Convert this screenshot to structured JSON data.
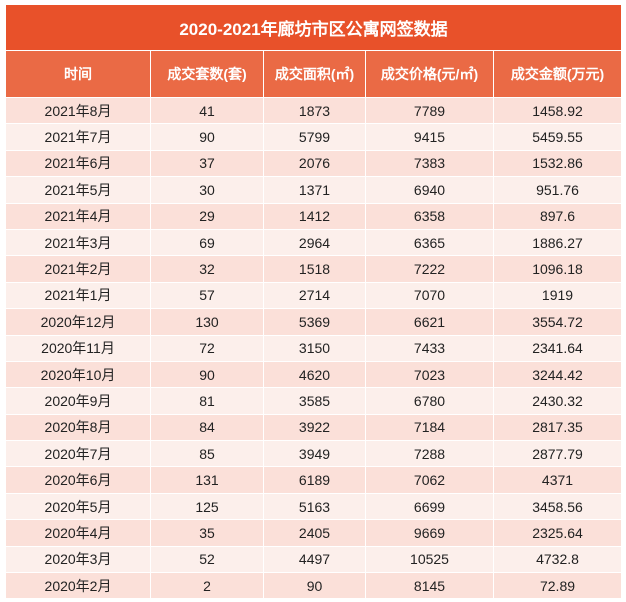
{
  "table": {
    "title": "2020-2021年廊坊市区公寓网签数据",
    "columns": [
      "时间",
      "成交套数(套)",
      "成交面积(㎡)",
      "成交价格(元/㎡)",
      "成交金额(万元)"
    ],
    "rows": [
      [
        "2021年8月",
        "41",
        "1873",
        "7789",
        "1458.92"
      ],
      [
        "2021年7月",
        "90",
        "5799",
        "9415",
        "5459.55"
      ],
      [
        "2021年6月",
        "37",
        "2076",
        "7383",
        "1532.86"
      ],
      [
        "2021年5月",
        "30",
        "1371",
        "6940",
        "951.76"
      ],
      [
        "2021年4月",
        "29",
        "1412",
        "6358",
        "897.6"
      ],
      [
        "2021年3月",
        "69",
        "2964",
        "6365",
        "1886.27"
      ],
      [
        "2021年2月",
        "32",
        "1518",
        "7222",
        "1096.18"
      ],
      [
        "2021年1月",
        "57",
        "2714",
        "7070",
        "1919"
      ],
      [
        "2020年12月",
        "130",
        "5369",
        "6621",
        "3554.72"
      ],
      [
        "2020年11月",
        "72",
        "3150",
        "7433",
        "2341.64"
      ],
      [
        "2020年10月",
        "90",
        "4620",
        "7023",
        "3244.42"
      ],
      [
        "2020年9月",
        "81",
        "3585",
        "6780",
        "2430.32"
      ],
      [
        "2020年8月",
        "84",
        "3922",
        "7184",
        "2817.35"
      ],
      [
        "2020年7月",
        "85",
        "3949",
        "7288",
        "2877.79"
      ],
      [
        "2020年6月",
        "131",
        "6189",
        "7062",
        "4371"
      ],
      [
        "2020年5月",
        "125",
        "5163",
        "6699",
        "3458.56"
      ],
      [
        "2020年4月",
        "35",
        "2405",
        "9669",
        "2325.64"
      ],
      [
        "2020年3月",
        "52",
        "4497",
        "10525",
        "4732.8"
      ],
      [
        "2020年2月",
        "2",
        "90",
        "8145",
        "72.89"
      ]
    ]
  }
}
